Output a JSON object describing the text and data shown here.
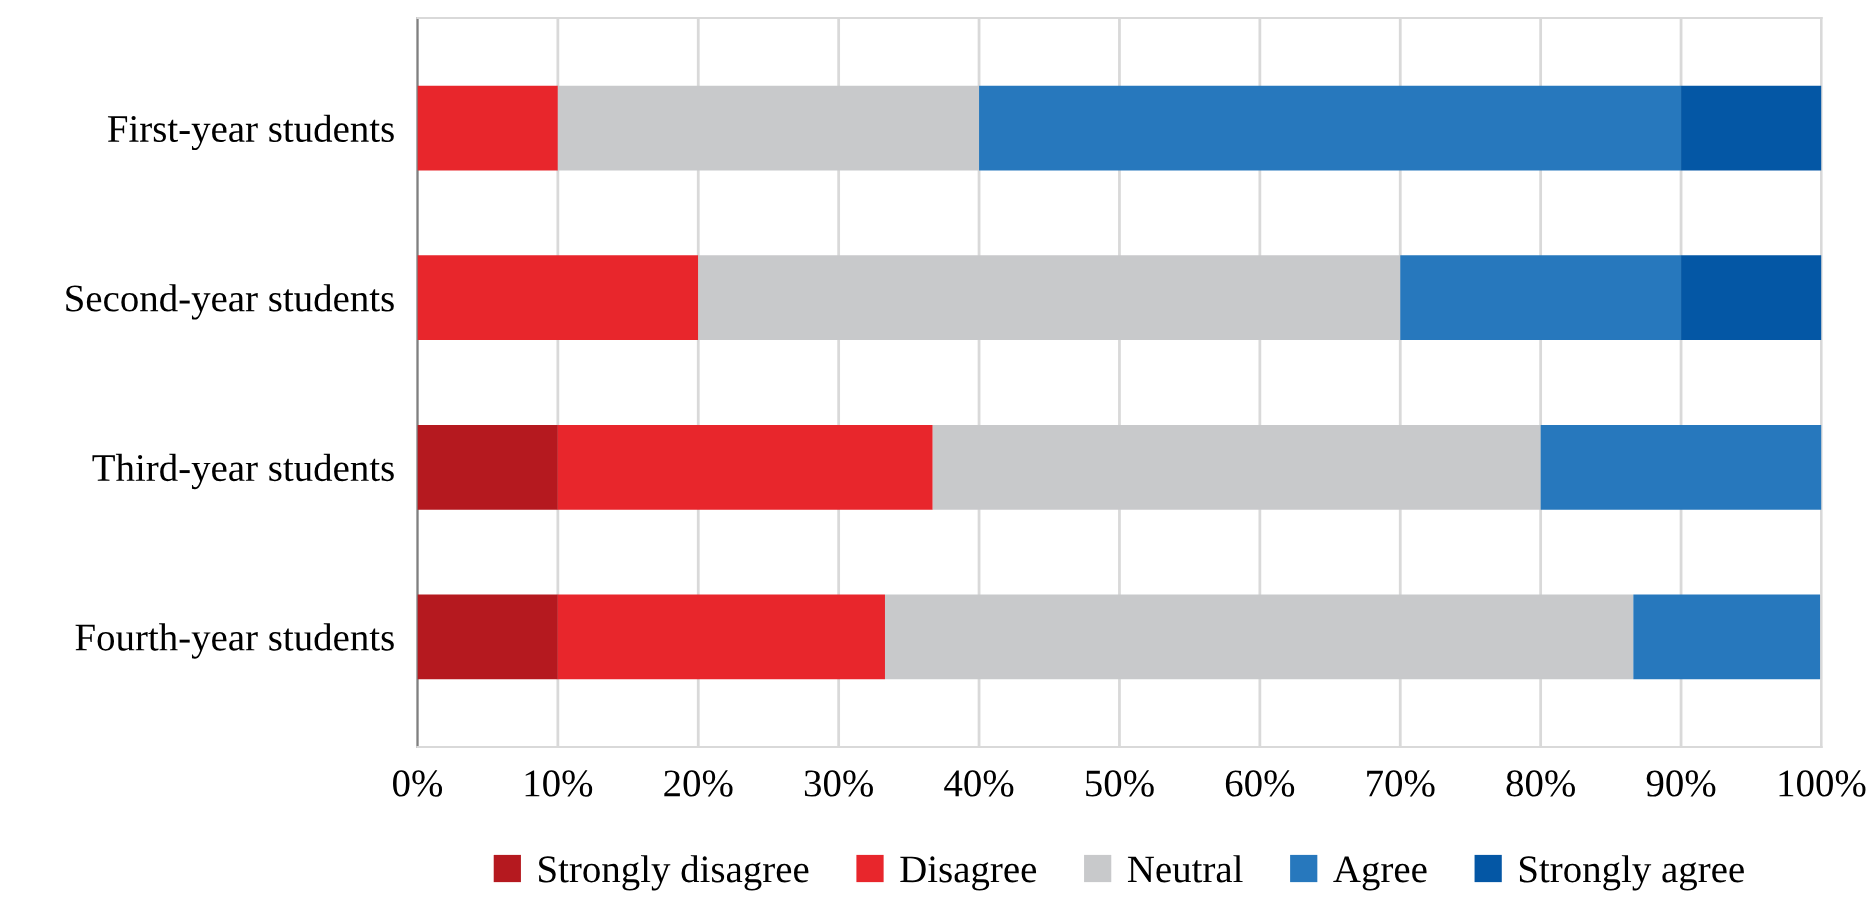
{
  "chart_data": {
    "type": "bar",
    "orientation": "horizontal",
    "stacked": true,
    "categories": [
      "First-year students",
      "Second-year students",
      "Third-year students",
      "Fourth-year students"
    ],
    "series": [
      {
        "name": "Strongly disagree",
        "color": "#b5191f",
        "values": [
          0,
          0,
          10,
          10
        ]
      },
      {
        "name": "Disagree",
        "color": "#e8262c",
        "values": [
          10,
          20,
          26.7,
          23.3
        ]
      },
      {
        "name": "Neutral",
        "color": "#c8c9cb",
        "values": [
          30,
          50,
          43.3,
          53.3
        ]
      },
      {
        "name": "Agree",
        "color": "#2778bd",
        "values": [
          50,
          20,
          20,
          13.3
        ]
      },
      {
        "name": "Strongly agree",
        "color": "#0457a5",
        "values": [
          10,
          10,
          0,
          0
        ]
      }
    ],
    "xlim": [
      0,
      100
    ],
    "xticks": [
      {
        "value": 0,
        "label": "0%"
      },
      {
        "value": 10,
        "label": "10%"
      },
      {
        "value": 20,
        "label": "20%"
      },
      {
        "value": 30,
        "label": "30%"
      },
      {
        "value": 40,
        "label": "40%"
      },
      {
        "value": 50,
        "label": "50%"
      },
      {
        "value": 60,
        "label": "60%"
      },
      {
        "value": 70,
        "label": "70%"
      },
      {
        "value": 80,
        "label": "80%"
      },
      {
        "value": 90,
        "label": "90%"
      },
      {
        "value": 100,
        "label": "100%"
      }
    ],
    "grid": "x",
    "legend": "bottom"
  }
}
